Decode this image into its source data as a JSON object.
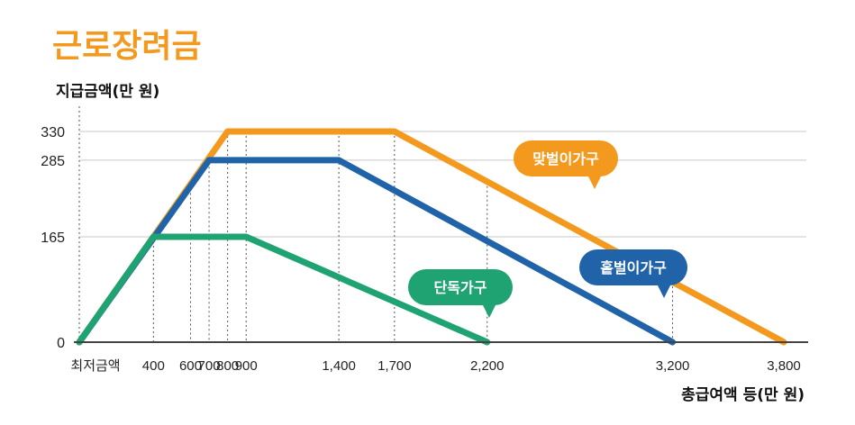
{
  "chart_data": {
    "type": "line",
    "title": "근로장려금",
    "ylabel": "지급금액(만 원)",
    "xlabel": "총급여액 등(만 원)",
    "ylim": [
      0,
      330
    ],
    "xlim": [
      0,
      3800
    ],
    "x_ticks": [
      {
        "value": 0,
        "label": "최저금액"
      },
      {
        "value": 400,
        "label": "400"
      },
      {
        "value": 600,
        "label": "600"
      },
      {
        "value": 700,
        "label": "700"
      },
      {
        "value": 800,
        "label": "800"
      },
      {
        "value": 900,
        "label": "900"
      },
      {
        "value": 1400,
        "label": "1,400"
      },
      {
        "value": 1700,
        "label": "1,700"
      },
      {
        "value": 2200,
        "label": "2,200"
      },
      {
        "value": 3200,
        "label": "3,200"
      },
      {
        "value": 3800,
        "label": "3,800"
      }
    ],
    "y_ticks": [
      {
        "value": 0,
        "label": "0"
      },
      {
        "value": 165,
        "label": "165"
      },
      {
        "value": 285,
        "label": "285"
      },
      {
        "value": 330,
        "label": "330"
      }
    ],
    "series": [
      {
        "name": "맞벌이가구",
        "color": "#f39a1e",
        "x": [
          0,
          800,
          1700,
          3800
        ],
        "y": [
          0,
          330,
          330,
          0
        ]
      },
      {
        "name": "홑벌이가구",
        "color": "#2163a8",
        "x": [
          0,
          700,
          1400,
          3200
        ],
        "y": [
          0,
          285,
          285,
          0
        ]
      },
      {
        "name": "단독가구",
        "color": "#20a373",
        "x": [
          0,
          400,
          900,
          2200
        ],
        "y": [
          0,
          165,
          165,
          0
        ]
      }
    ],
    "grid": "horizontal at y ticks; dotted vertical guides at x ticks",
    "legend": "speech-bubble labels near each line"
  },
  "colors": {
    "title": "#f39a1e",
    "axis": "#444444",
    "grid": "#c8c8c8"
  }
}
